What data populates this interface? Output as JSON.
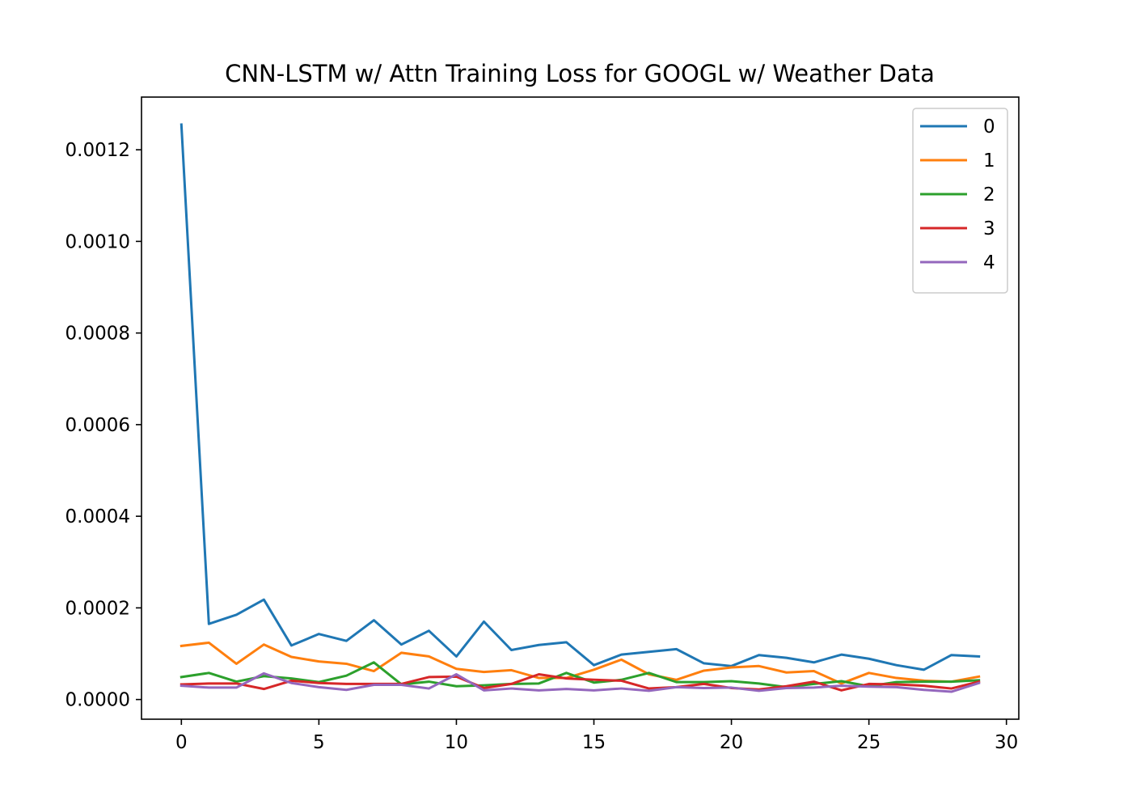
{
  "chart_data": {
    "type": "line",
    "title": "CNN-LSTM w/ Attn Training Loss for GOOGL w/ Weather Data",
    "xlabel": "",
    "ylabel": "",
    "xlim": [
      -1.45,
      30.45
    ],
    "ylim": [
      -4.3e-05,
      0.001315
    ],
    "xticks": [
      0,
      5,
      10,
      15,
      20,
      25,
      30
    ],
    "xtick_labels": [
      "0",
      "5",
      "10",
      "15",
      "20",
      "25",
      "30"
    ],
    "yticks": [
      0.0,
      0.0002,
      0.0004,
      0.0006,
      0.0008,
      0.001,
      0.0012
    ],
    "ytick_labels": [
      "0.0000",
      "0.0002",
      "0.0004",
      "0.0006",
      "0.0008",
      "0.0010",
      "0.0012"
    ],
    "grid": false,
    "legend_position": "top-right",
    "x": [
      0,
      1,
      2,
      3,
      4,
      5,
      6,
      7,
      8,
      9,
      10,
      11,
      12,
      13,
      14,
      15,
      16,
      17,
      18,
      19,
      20,
      21,
      22,
      23,
      24,
      25,
      26,
      27,
      28,
      29
    ],
    "series": [
      {
        "name": "0",
        "color": "#1f77b4",
        "values": [
          0.001255,
          0.000165,
          0.000185,
          0.000218,
          0.000118,
          0.000143,
          0.000128,
          0.000173,
          0.00012,
          0.00015,
          9.4e-05,
          0.00017,
          0.000108,
          0.000119,
          0.000125,
          7.5e-05,
          9.8e-05,
          0.000104,
          0.00011,
          7.9e-05,
          7.3e-05,
          9.7e-05,
          9.1e-05,
          8.1e-05,
          9.8e-05,
          8.9e-05,
          7.5e-05,
          6.5e-05,
          9.7e-05,
          9.4e-05
        ]
      },
      {
        "name": "1",
        "color": "#ff7f0e",
        "values": [
          0.000117,
          0.000124,
          7.8e-05,
          0.00012,
          9.3e-05,
          8.3e-05,
          7.8e-05,
          6.2e-05,
          0.000102,
          9.4e-05,
          6.7e-05,
          6e-05,
          6.4e-05,
          4.7e-05,
          4.7e-05,
          6.5e-05,
          8.7e-05,
          5.5e-05,
          4.3e-05,
          6.3e-05,
          7e-05,
          7.3e-05,
          5.9e-05,
          6.2e-05,
          3.5e-05,
          5.8e-05,
          4.7e-05,
          4.1e-05,
          3.9e-05,
          5e-05
        ]
      },
      {
        "name": "2",
        "color": "#2ca02c",
        "values": [
          4.9e-05,
          5.8e-05,
          3.9e-05,
          5.1e-05,
          4.6e-05,
          3.8e-05,
          5.2e-05,
          8.1e-05,
          3.3e-05,
          3.9e-05,
          2.9e-05,
          3.1e-05,
          3.4e-05,
          3.5e-05,
          5.8e-05,
          3.7e-05,
          4.3e-05,
          5.8e-05,
          3.8e-05,
          3.8e-05,
          4e-05,
          3.5e-05,
          2.7e-05,
          3.4e-05,
          4e-05,
          2.9e-05,
          3.8e-05,
          3.9e-05,
          3.9e-05,
          4.2e-05
        ]
      },
      {
        "name": "3",
        "color": "#d62728",
        "values": [
          3.3e-05,
          3.5e-05,
          3.5e-05,
          2.3e-05,
          4.1e-05,
          3.6e-05,
          3.4e-05,
          3.4e-05,
          3.4e-05,
          4.9e-05,
          5e-05,
          2.5e-05,
          3.4e-05,
          5.5e-05,
          4.6e-05,
          4.3e-05,
          4.1e-05,
          2.4e-05,
          2.7e-05,
          3.4e-05,
          2.5e-05,
          2.2e-05,
          2.9e-05,
          3.9e-05,
          2e-05,
          3.4e-05,
          3.3e-05,
          3e-05,
          2.4e-05,
          3.9e-05
        ]
      },
      {
        "name": "4",
        "color": "#9467bd",
        "values": [
          3e-05,
          2.6e-05,
          2.6e-05,
          5.7e-05,
          3.6e-05,
          2.7e-05,
          2.1e-05,
          3.2e-05,
          3.2e-05,
          2.4e-05,
          5.5e-05,
          2e-05,
          2.4e-05,
          2e-05,
          2.3e-05,
          2e-05,
          2.4e-05,
          1.9e-05,
          2.7e-05,
          2.5e-05,
          2.6e-05,
          1.9e-05,
          2.5e-05,
          2.6e-05,
          3e-05,
          2.8e-05,
          2.7e-05,
          2.1e-05,
          1.7e-05,
          3.6e-05
        ]
      }
    ]
  }
}
